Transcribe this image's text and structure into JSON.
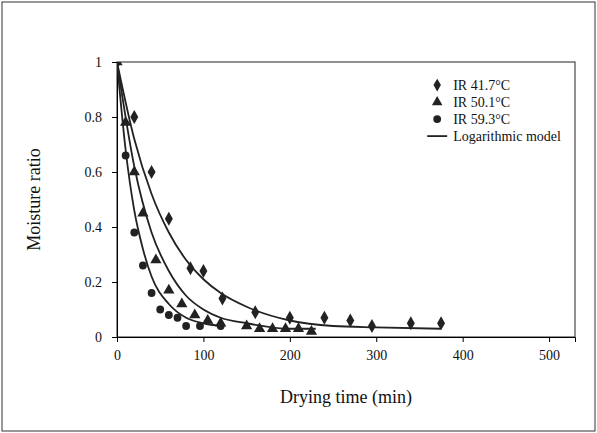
{
  "chart_data": {
    "type": "scatter",
    "x_label": "Drying time (min)",
    "y_label": "Moisture ratio",
    "xlim": [
      0,
      530
    ],
    "xticks": [
      0,
      100,
      200,
      300,
      400,
      500
    ],
    "ylim": [
      0,
      1
    ],
    "yticks": [
      0,
      0.2,
      0.4,
      0.6,
      0.8,
      1
    ],
    "grid": false,
    "legend": "top-right",
    "series": [
      {
        "name": "IR 41.7°C",
        "type": "scatter",
        "marker": "diamond",
        "color": "#222222",
        "x": [
          0,
          20,
          40,
          60,
          85,
          100,
          122,
          160,
          200,
          240,
          270,
          295,
          340,
          375
        ],
        "values": [
          1,
          0.8,
          0.6,
          0.43,
          0.25,
          0.24,
          0.14,
          0.09,
          0.07,
          0.07,
          0.06,
          0.04,
          0.05,
          0.05
        ]
      },
      {
        "name": "IR 50.1°C",
        "type": "scatter",
        "marker": "triangle",
        "color": "#222222",
        "x": [
          0,
          10,
          20,
          30,
          45,
          60,
          75,
          90,
          105,
          120,
          150,
          165,
          180,
          195,
          210,
          225
        ],
        "values": [
          1,
          0.78,
          0.6,
          0.45,
          0.28,
          0.17,
          0.12,
          0.08,
          0.06,
          0.05,
          0.04,
          0.03,
          0.03,
          0.03,
          0.03,
          0.02
        ]
      },
      {
        "name": "IR 59.3°C",
        "type": "scatter",
        "marker": "circle",
        "color": "#222222",
        "x": [
          0,
          10,
          20,
          30,
          40,
          50,
          60,
          70,
          80,
          96,
          120
        ],
        "values": [
          1,
          0.66,
          0.38,
          0.26,
          0.16,
          0.1,
          0.08,
          0.07,
          0.04,
          0.04,
          0.04
        ]
      },
      {
        "name": "Logarithmic model",
        "type": "line",
        "line_style": "solid",
        "color": "#222222",
        "x": [
          0,
          20,
          40,
          60,
          80,
          100,
          120,
          150,
          200,
          250,
          300,
          375
        ],
        "values": [
          1,
          0.72,
          0.52,
          0.38,
          0.28,
          0.21,
          0.16,
          0.11,
          0.06,
          0.04,
          0.035,
          0.03
        ]
      },
      {
        "type": "line",
        "line_style": "solid",
        "color": "#222222",
        "x": [
          0,
          20,
          40,
          60,
          80,
          100,
          120,
          150,
          200,
          230
        ],
        "values": [
          1,
          0.62,
          0.38,
          0.24,
          0.15,
          0.1,
          0.07,
          0.05,
          0.03,
          0.03
        ]
      },
      {
        "type": "line",
        "line_style": "solid",
        "color": "#222222",
        "x": [
          0,
          10,
          20,
          30,
          40,
          60,
          80,
          100,
          120
        ],
        "values": [
          1,
          0.68,
          0.46,
          0.32,
          0.22,
          0.12,
          0.07,
          0.05,
          0.04
        ]
      }
    ]
  }
}
